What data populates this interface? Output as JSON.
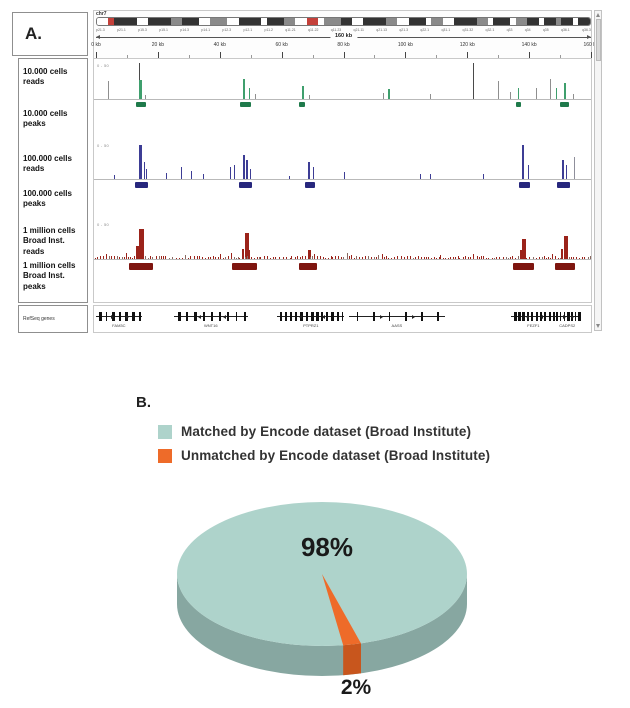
{
  "panel_a": {
    "label": "A.",
    "chromosome": "chr7",
    "span_label": "160 kb",
    "refseq_label": "RefSeq genes",
    "range_label": "0 - 50",
    "track_labels": [
      "10.000 cells reads",
      "10.000 cells peaks",
      "100.000 cells reads",
      "100.000 cells peaks",
      "1 million cells Broad Inst. reads",
      "1 million cells Broad Inst. peaks"
    ]
  },
  "panel_b": {
    "label": "B."
  },
  "chart_data": [
    {
      "type": "area",
      "x_domain": [
        0,
        160
      ],
      "x_unit": "kb",
      "ruler_labels": [
        "0 kb",
        "20 kb",
        "40 kb",
        "60 kb",
        "80 kb",
        "100 kb",
        "120 kb",
        "140 kb",
        "160 kb"
      ],
      "band_labels": [
        "p21.3",
        "p21.1",
        "p15.3",
        "p15.1",
        "p14.3",
        "p14.1",
        "p12.3",
        "p12.1",
        "p11.2",
        "q11.21",
        "q11.22",
        "q11.23",
        "q21.11",
        "q21.13",
        "q21.3",
        "q22.1",
        "q31.1",
        "q31.32",
        "q32.1",
        "q33",
        "q34",
        "q35",
        "q36.1",
        "q36.3"
      ],
      "ideogram_bands": [
        [
          2,
          "w"
        ],
        [
          1,
          "r"
        ],
        [
          4,
          "d"
        ],
        [
          2,
          "w"
        ],
        [
          4,
          "d"
        ],
        [
          2,
          "m"
        ],
        [
          3,
          "d"
        ],
        [
          2,
          "w"
        ],
        [
          3,
          "m"
        ],
        [
          2,
          "w"
        ],
        [
          4,
          "d"
        ],
        [
          1,
          "w"
        ],
        [
          3,
          "d"
        ],
        [
          2,
          "m"
        ],
        [
          2,
          "w"
        ],
        [
          2,
          "r"
        ],
        [
          1,
          "w"
        ],
        [
          3,
          "m"
        ],
        [
          2,
          "d"
        ],
        [
          2,
          "w"
        ],
        [
          4,
          "d"
        ],
        [
          2,
          "m"
        ],
        [
          2,
          "w"
        ],
        [
          3,
          "d"
        ],
        [
          1,
          "w"
        ],
        [
          2,
          "m"
        ],
        [
          2,
          "w"
        ],
        [
          4,
          "d"
        ],
        [
          2,
          "m"
        ],
        [
          1,
          "w"
        ],
        [
          3,
          "d"
        ],
        [
          1,
          "w"
        ],
        [
          2,
          "m"
        ],
        [
          2,
          "d"
        ],
        [
          1,
          "w"
        ],
        [
          2,
          "d"
        ],
        [
          1,
          "m"
        ],
        [
          2,
          "d"
        ],
        [
          1,
          "w"
        ],
        [
          2,
          "d"
        ]
      ],
      "tracks": [
        {
          "name": "10.000 cells reads",
          "colors": [
            "#3f9f6d",
            "#8f8f8f",
            "#4a4a4a"
          ],
          "block_color": "#1f7a4b",
          "spikes": [
            [
              4.5,
              0.5,
              1,
              1
            ],
            [
              14.4,
              1.0,
              1,
              2
            ],
            [
              14.4,
              0.52,
              3,
              0
            ],
            [
              16.3,
              0.12,
              1,
              1
            ],
            [
              47.7,
              0.55,
              2,
              0
            ],
            [
              49.6,
              0.3,
              1,
              0
            ],
            [
              51.5,
              0.15,
              1,
              1
            ],
            [
              66.6,
              0.35,
              2,
              0
            ],
            [
              68.8,
              0.12,
              1,
              1
            ],
            [
              92.8,
              0.18,
              1,
              1
            ],
            [
              94.4,
              0.28,
              2,
              0
            ],
            [
              107.8,
              0.15,
              1,
              1
            ],
            [
              121.6,
              1.0,
              1,
              2
            ],
            [
              129.6,
              0.5,
              1,
              1
            ],
            [
              133.4,
              0.2,
              1,
              1
            ],
            [
              136.0,
              0.3,
              1,
              0
            ],
            [
              141.8,
              0.3,
              1,
              1
            ],
            [
              146.2,
              0.55,
              1,
              1
            ],
            [
              148.2,
              0.3,
              1,
              0
            ],
            [
              150.7,
              0.45,
              2,
              0
            ],
            [
              153.6,
              0.15,
              1,
              1
            ]
          ],
          "blocks": [
            [
              13.4,
              16.6
            ],
            [
              46.7,
              50.2
            ],
            [
              65.6,
              67.5
            ],
            [
              135.2,
              136.9
            ],
            [
              149.3,
              152.2
            ]
          ],
          "noise": false
        },
        {
          "name": "100.000 cells reads",
          "colors": [
            "#3d3d95",
            "#8f8f9b",
            "#30306e"
          ],
          "block_color": "#27277d",
          "spikes": [
            [
              6.4,
              0.12,
              1,
              0
            ],
            [
              14.4,
              1.0,
              3,
              0
            ],
            [
              15.9,
              0.5,
              1,
              0
            ],
            [
              16.7,
              0.28,
              1,
              0
            ],
            [
              23.0,
              0.18,
              1,
              0
            ],
            [
              27.8,
              0.35,
              1,
              0
            ],
            [
              31.0,
              0.25,
              1,
              0
            ],
            [
              34.9,
              0.15,
              1,
              0
            ],
            [
              43.5,
              0.35,
              1,
              0
            ],
            [
              45.0,
              0.4,
              1,
              0
            ],
            [
              47.7,
              0.7,
              2,
              0
            ],
            [
              48.8,
              0.55,
              2,
              0
            ],
            [
              50.1,
              0.3,
              1,
              0
            ],
            [
              62.4,
              0.1,
              1,
              0
            ],
            [
              68.5,
              0.5,
              2,
              0
            ],
            [
              70.1,
              0.35,
              1,
              0
            ],
            [
              80.0,
              0.2,
              1,
              0
            ],
            [
              104.6,
              0.14,
              1,
              0
            ],
            [
              107.8,
              0.14,
              1,
              0
            ],
            [
              124.8,
              0.16,
              1,
              0
            ],
            [
              137.3,
              1.0,
              2,
              0
            ],
            [
              139.0,
              0.4,
              1,
              0
            ],
            [
              150.1,
              0.55,
              2,
              0
            ],
            [
              151.5,
              0.4,
              1,
              0
            ],
            [
              153.9,
              0.65,
              1,
              1
            ]
          ],
          "blocks": [
            [
              13.0,
              17.3
            ],
            [
              46.4,
              50.6
            ],
            [
              67.5,
              71.0
            ],
            [
              136.3,
              139.8
            ],
            [
              148.6,
              152.6
            ]
          ],
          "noise": false
        },
        {
          "name": "1 million cells Broad Inst. reads",
          "colors": [
            "#9b231a",
            "#8a6a62",
            "#6b1410"
          ],
          "block_color": "#7e150f",
          "spikes": [
            [
              13.6,
              0.45,
              3,
              0
            ],
            [
              14.4,
              1.0,
              5,
              0
            ],
            [
              15.4,
              0.35,
              2,
              0
            ],
            [
              47.4,
              0.35,
              2,
              0
            ],
            [
              48.3,
              0.88,
              4,
              0
            ],
            [
              49.3,
              0.3,
              2,
              0
            ],
            [
              68.5,
              0.3,
              3,
              0
            ],
            [
              136.5,
              0.3,
              2,
              0
            ],
            [
              137.3,
              0.68,
              4,
              0
            ],
            [
              149.8,
              0.35,
              2,
              0
            ],
            [
              150.7,
              0.78,
              4,
              0
            ]
          ],
          "blocks": [
            [
              11.2,
              18.9
            ],
            [
              44.2,
              52.2
            ],
            [
              65.6,
              71.4
            ],
            [
              134.4,
              141.1
            ],
            [
              147.8,
              154.2
            ]
          ],
          "noise": true
        }
      ],
      "genes": [
        {
          "s": 0.6,
          "e": 15.4,
          "name": "FAM3C",
          "exons": 7,
          "strand": "r"
        },
        {
          "s": 25.6,
          "e": 49.6,
          "name": "WNT16",
          "exons": 9,
          "strand": "l"
        },
        {
          "s": 59.0,
          "e": 80.6,
          "name": "PTPRZ1",
          "exons": 13,
          "strand": "l"
        },
        {
          "s": 82.0,
          "e": 113.0,
          "name": "AASS",
          "exons": 6,
          "strand": "r"
        },
        {
          "s": 134.4,
          "e": 148.5,
          "name": "FEZF1",
          "exons": 10,
          "strand": "l"
        },
        {
          "s": 148.2,
          "e": 156.5,
          "name": "CADPS2",
          "exons": 7,
          "strand": "r"
        }
      ]
    },
    {
      "type": "pie",
      "labels": [
        "Matched by Encode dataset (Broad Institute)",
        "Unmatched by Encode dataset (Broad Institute)"
      ],
      "values": [
        98,
        2
      ],
      "data_labels": [
        "98%",
        "2%"
      ],
      "colors": [
        "#aed3cb",
        "#ee6b29"
      ],
      "side_colors": [
        "#87a7a1",
        "#c8561d"
      ],
      "legend_position": "top"
    }
  ]
}
